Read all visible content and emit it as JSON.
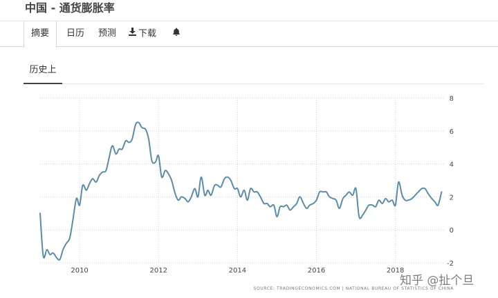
{
  "header": {
    "title": "中国 - 通货膨胀率"
  },
  "tabs": [
    {
      "label": "摘要",
      "active": true
    },
    {
      "label": "日历"
    },
    {
      "label": "预测"
    },
    {
      "label": "下载",
      "icon": "download-icon"
    },
    {
      "label": "",
      "icon": "bell-icon"
    }
  ],
  "subtab": {
    "label": "历史上"
  },
  "source": "SOURCE: TRADINGECONOMICS.COM | NATIONAL BUREAU OF STATISTICS OF CHINA",
  "watermark": "知乎 @扯个旦",
  "colors": {
    "line": "#5b8ba8",
    "grid": "#d2d2d2",
    "axis": "#444444"
  },
  "chart_data": {
    "type": "line",
    "title": "",
    "xlabel": "",
    "ylabel": "",
    "ylim": [
      -2,
      8
    ],
    "xlim": [
      2009.0,
      2019.25
    ],
    "y_ticks": [
      8,
      6,
      4,
      2,
      0,
      -2
    ],
    "x_ticks": [
      2010,
      2012,
      2014,
      2016,
      2018
    ],
    "grid": "dotted",
    "y_axis_side": "right",
    "series": [
      {
        "x": [
          2009.0,
          2009.08,
          2009.17,
          2009.25,
          2009.33,
          2009.42,
          2009.5,
          2009.58,
          2009.67,
          2009.75,
          2009.83,
          2009.92,
          2010.0,
          2010.08,
          2010.17,
          2010.25,
          2010.33,
          2010.42,
          2010.5,
          2010.58,
          2010.67,
          2010.75,
          2010.83,
          2010.92,
          2011.0,
          2011.08,
          2011.17,
          2011.25,
          2011.33,
          2011.42,
          2011.5,
          2011.58,
          2011.67,
          2011.75,
          2011.83,
          2011.92,
          2012.0,
          2012.08,
          2012.17,
          2012.25,
          2012.33,
          2012.42,
          2012.5,
          2012.58,
          2012.67,
          2012.75,
          2012.83,
          2012.92,
          2013.0,
          2013.08,
          2013.17,
          2013.25,
          2013.33,
          2013.42,
          2013.5,
          2013.58,
          2013.67,
          2013.75,
          2013.83,
          2013.92,
          2014.0,
          2014.08,
          2014.17,
          2014.25,
          2014.33,
          2014.42,
          2014.5,
          2014.58,
          2014.67,
          2014.75,
          2014.83,
          2014.92,
          2015.0,
          2015.08,
          2015.17,
          2015.25,
          2015.33,
          2015.42,
          2015.5,
          2015.58,
          2015.67,
          2015.75,
          2015.83,
          2015.92,
          2016.0,
          2016.08,
          2016.17,
          2016.25,
          2016.33,
          2016.42,
          2016.5,
          2016.58,
          2016.67,
          2016.75,
          2016.83,
          2016.92,
          2017.0,
          2017.08,
          2017.17,
          2017.25,
          2017.33,
          2017.42,
          2017.5,
          2017.58,
          2017.67,
          2017.75,
          2017.83,
          2017.92,
          2018.0,
          2018.08,
          2018.17,
          2018.25,
          2018.33,
          2018.42,
          2018.5,
          2018.58,
          2018.67,
          2018.75,
          2018.83,
          2018.92,
          2019.0,
          2019.08,
          2019.17
        ],
        "values": [
          1.0,
          -1.6,
          -1.2,
          -1.5,
          -1.4,
          -1.7,
          -1.8,
          -1.2,
          -0.8,
          -0.5,
          0.6,
          1.9,
          1.5,
          2.7,
          2.4,
          2.8,
          3.1,
          2.9,
          3.3,
          3.5,
          3.6,
          4.4,
          5.1,
          4.6,
          4.9,
          4.9,
          5.4,
          5.3,
          5.5,
          6.4,
          6.5,
          6.2,
          6.1,
          5.5,
          4.2,
          4.1,
          4.5,
          3.2,
          3.6,
          3.4,
          3.0,
          2.2,
          1.8,
          2.0,
          1.9,
          1.7,
          2.0,
          2.5,
          2.0,
          3.2,
          2.1,
          2.4,
          2.1,
          2.7,
          2.7,
          2.6,
          3.1,
          3.2,
          3.0,
          2.5,
          2.5,
          2.0,
          2.4,
          1.8,
          2.5,
          2.3,
          2.3,
          2.0,
          1.6,
          1.6,
          1.4,
          1.5,
          0.8,
          1.4,
          1.4,
          1.5,
          1.2,
          1.4,
          1.6,
          2.0,
          1.6,
          1.3,
          1.5,
          1.6,
          1.8,
          2.3,
          2.3,
          2.3,
          2.0,
          1.9,
          1.8,
          1.3,
          1.9,
          2.1,
          2.3,
          2.1,
          2.5,
          0.8,
          0.9,
          1.2,
          1.5,
          1.5,
          1.4,
          1.8,
          1.6,
          1.9,
          1.7,
          1.8,
          1.5,
          2.9,
          2.1,
          1.8,
          1.8,
          1.9,
          2.1,
          2.3,
          2.5,
          2.5,
          2.2,
          1.9,
          1.7,
          1.5,
          2.3
        ]
      }
    ]
  }
}
